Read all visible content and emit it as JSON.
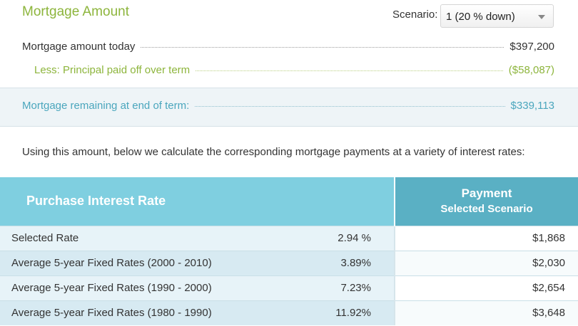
{
  "mortgage": {
    "title": "Mortgage Amount",
    "scenario_label": "Scenario:",
    "scenario_value": "1 (20 % down)",
    "today_label": "Mortgage amount today",
    "today_value": "$397,200",
    "less_label": "Less: Principal paid off over term",
    "less_value": "($58,087)",
    "remaining_label": "Mortgage remaining at end of term:",
    "remaining_value": "$339,113",
    "explain": "Using this amount, below we calculate the corresponding mortgage payments at a variety of interest rates:"
  },
  "table": {
    "header_rate": "Purchase Interest Rate",
    "header_payment": "Payment",
    "header_payment_sub": "Selected Scenario",
    "rows": [
      {
        "label": "Selected Rate",
        "rate": "2.94 %",
        "payment": "$1,868"
      },
      {
        "label": "Average 5-year Fixed Rates (2000 - 2010)",
        "rate": "3.89%",
        "payment": "$2,030"
      },
      {
        "label": "Average 5-year Fixed Rates (1990 - 2000)",
        "rate": "7.23%",
        "payment": "$2,654"
      },
      {
        "label": "Average 5-year Fixed Rates (1980 - 1990)",
        "rate": "11.92%",
        "payment": "$3,648"
      }
    ]
  },
  "colors": {
    "accent_green": "#8db53c",
    "accent_blue": "#4aa6bd",
    "header_light": "#7fcfe0",
    "header_dark": "#5ab0c4"
  }
}
